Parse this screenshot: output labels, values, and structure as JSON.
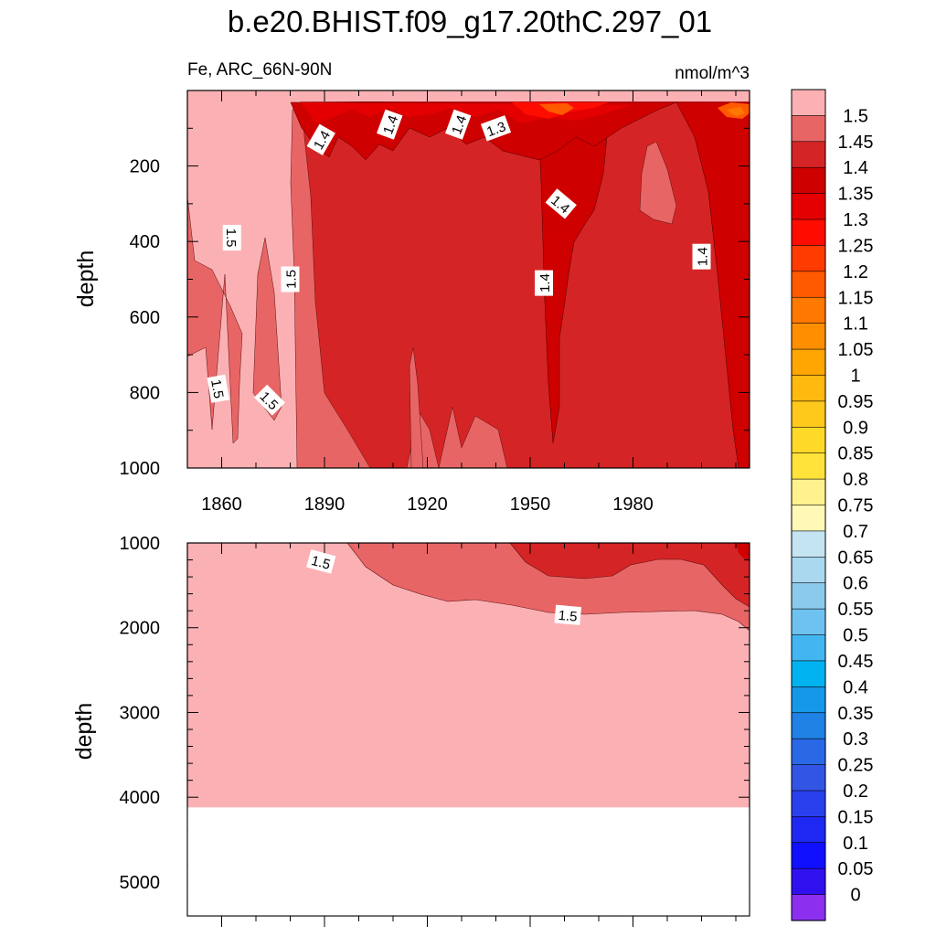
{
  "figure": {
    "title": "b.e20.BHIST.f09_g17.20thC.297_01",
    "subtitle_left": "Fe, ARC_66N-90N",
    "subtitle_right": "nmol/m^3"
  },
  "chart_data": [
    {
      "type": "heatmap",
      "panel": "upper",
      "variable": "Fe",
      "region": "ARC_66N-90N",
      "units": "nmol/m^3",
      "ylabel": "depth",
      "xlabel": "",
      "xlim": [
        1850,
        2014
      ],
      "ylim": [
        1000,
        0
      ],
      "x_ticks": [
        1860,
        1890,
        1920,
        1950,
        1980
      ],
      "y_ticks": [
        200,
        400,
        600,
        800,
        1000
      ],
      "contour_labels": [
        {
          "text": "1.4",
          "x": 1889,
          "y": 130
        },
        {
          "text": "1.4",
          "x": 1909,
          "y": 90
        },
        {
          "text": "1.4",
          "x": 1929,
          "y": 90
        },
        {
          "text": "1.3",
          "x": 1940,
          "y": 100
        },
        {
          "text": "1.4",
          "x": 1959,
          "y": 300
        },
        {
          "text": "1.4",
          "x": 1954,
          "y": 510
        },
        {
          "text": "1.4",
          "x": 2000,
          "y": 440
        },
        {
          "text": "1.5",
          "x": 1863,
          "y": 390
        },
        {
          "text": "1.5",
          "x": 1880,
          "y": 500
        },
        {
          "text": "1.5",
          "x": 1859,
          "y": 790
        },
        {
          "text": "1.5",
          "x": 1874,
          "y": 820
        }
      ]
    },
    {
      "type": "heatmap",
      "panel": "lower",
      "variable": "Fe",
      "ylabel": "depth",
      "xlim": [
        1850,
        2014
      ],
      "ylim": [
        5400,
        1000
      ],
      "y_ticks": [
        1000,
        2000,
        3000,
        4000,
        5000
      ],
      "contour_labels": [
        {
          "text": "1.5",
          "x": 1889,
          "y": 1220
        },
        {
          "text": "1.5",
          "x": 1961,
          "y": 1850
        }
      ],
      "no_data_below": 4120
    }
  ],
  "colorbar": {
    "labels": [
      "1.5",
      "1.45",
      "1.4",
      "1.35",
      "1.3",
      "1.25",
      "1.2",
      "1.15",
      "1.1",
      "1.05",
      "1",
      "0.95",
      "0.9",
      "0.85",
      "0.8",
      "0.75",
      "0.7",
      "0.65",
      "0.6",
      "0.55",
      "0.5",
      "0.45",
      "0.4",
      "0.35",
      "0.3",
      "0.25",
      "0.2",
      "0.15",
      "0.1",
      "0.05",
      "0"
    ],
    "colors": [
      "#fbb1b4",
      "#e86566",
      "#d52425",
      "#cf0000",
      "#e40000",
      "#ff0c00",
      "#ff3b00",
      "#ff5a00",
      "#ff7800",
      "#ff8f00",
      "#ffa600",
      "#ffb90f",
      "#ffc91c",
      "#ffd928",
      "#ffe23a",
      "#fff18e",
      "#fff8b6",
      "#c5e4f2",
      "#aad8ee",
      "#8ccaec",
      "#6ec2ef",
      "#43b6f2",
      "#00b2f0",
      "#1598e8",
      "#1f82e4",
      "#2a68e6",
      "#3355e6",
      "#2a40ee",
      "#1f28f2",
      "#1010ff",
      "#3010ef",
      "#8c2fef"
    ]
  }
}
